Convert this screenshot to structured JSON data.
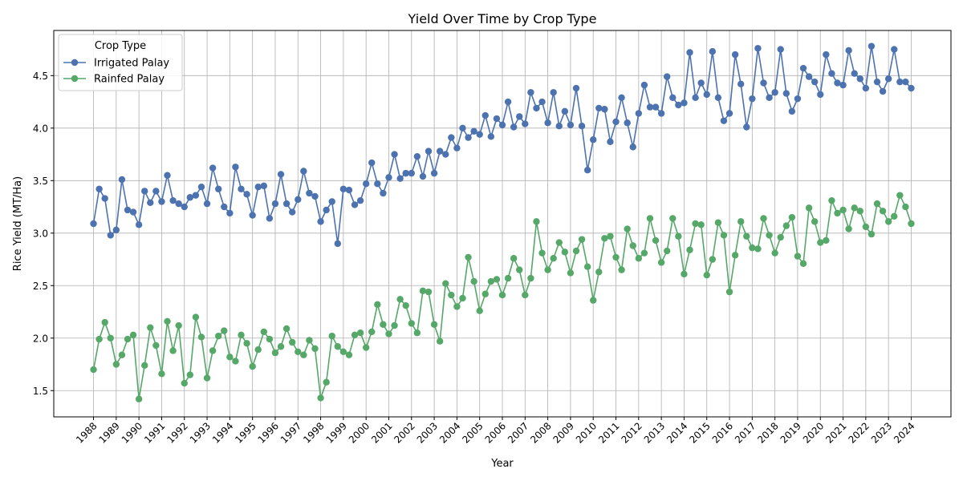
{
  "chart_data": {
    "type": "line",
    "title": "Yield Over Time by Crop Type",
    "xlabel": "Year",
    "ylabel": "Rice Yield (MT/Ha)",
    "xlim": [
      1986.25,
      2025.75
    ],
    "ylim": [
      1.25,
      4.93
    ],
    "yticks": [
      1.5,
      2.0,
      2.5,
      3.0,
      3.5,
      4.0,
      4.5
    ],
    "ytick_labels": [
      "1.5",
      "2.0",
      "2.5",
      "3.0",
      "3.5",
      "4.0",
      "4.5"
    ],
    "xticks": [
      1988,
      1989,
      1990,
      1991,
      1992,
      1993,
      1994,
      1995,
      1996,
      1997,
      1998,
      1999,
      2000,
      2001,
      2002,
      2003,
      2004,
      2005,
      2006,
      2007,
      2008,
      2009,
      2010,
      2011,
      2012,
      2013,
      2014,
      2015,
      2016,
      2017,
      2018,
      2019,
      2020,
      2021,
      2022,
      2023,
      2024
    ],
    "xtick_labels": [
      "1988",
      "1989",
      "1990",
      "1991",
      "1992",
      "1993",
      "1994",
      "1995",
      "1996",
      "1997",
      "1998",
      "1999",
      "2000",
      "2001",
      "2002",
      "2003",
      "2004",
      "2005",
      "2006",
      "2007",
      "2008",
      "2009",
      "2010",
      "2011",
      "2012",
      "2013",
      "2014",
      "2015",
      "2016",
      "2017",
      "2018",
      "2019",
      "2020",
      "2021",
      "2022",
      "2023",
      "2024"
    ],
    "grid": true,
    "legend_title": "Crop Type",
    "legend_position": "top-left",
    "x_start": 1988,
    "x_step": 0.25,
    "series": [
      {
        "name": "Irrigated Palay",
        "color": "#4c72b0",
        "values": [
          3.09,
          3.42,
          3.33,
          2.98,
          3.03,
          3.51,
          3.22,
          3.2,
          3.08,
          3.4,
          3.29,
          3.4,
          3.3,
          3.55,
          3.31,
          3.28,
          3.25,
          3.34,
          3.36,
          3.44,
          3.28,
          3.62,
          3.42,
          3.25,
          3.19,
          3.63,
          3.42,
          3.37,
          3.17,
          3.44,
          3.45,
          3.14,
          3.28,
          3.56,
          3.28,
          3.2,
          3.32,
          3.59,
          3.38,
          3.35,
          3.11,
          3.22,
          3.3,
          2.9,
          3.42,
          3.41,
          3.27,
          3.31,
          3.47,
          3.67,
          3.47,
          3.38,
          3.53,
          3.75,
          3.52,
          3.57,
          3.57,
          3.73,
          3.54,
          3.78,
          3.57,
          3.78,
          3.75,
          3.91,
          3.81,
          4.0,
          3.91,
          3.97,
          3.94,
          4.12,
          3.92,
          4.09,
          4.03,
          4.25,
          4.01,
          4.11,
          4.04,
          4.34,
          4.19,
          4.25,
          4.05,
          4.34,
          4.02,
          4.16,
          4.03,
          4.38,
          4.02,
          3.6,
          3.89,
          4.19,
          4.18,
          3.87,
          4.06,
          4.29,
          4.05,
          3.82,
          4.14,
          4.41,
          4.2,
          4.2,
          4.14,
          4.49,
          4.29,
          4.22,
          4.24,
          4.72,
          4.29,
          4.43,
          4.32,
          4.73,
          4.29,
          4.07,
          4.14,
          4.7,
          4.42,
          4.01,
          4.28,
          4.76,
          4.43,
          4.29,
          4.34,
          4.75,
          4.33,
          4.16,
          4.28,
          4.57,
          4.49,
          4.44,
          4.32,
          4.7,
          4.52,
          4.43,
          4.41,
          4.74,
          4.52,
          4.47,
          4.38,
          4.78,
          4.44,
          4.35,
          4.47,
          4.75,
          4.44,
          4.44,
          4.38
        ]
      },
      {
        "name": "Rainfed Palay",
        "color": "#55a868",
        "values": [
          1.7,
          1.99,
          2.15,
          2.0,
          1.75,
          1.84,
          1.99,
          2.03,
          1.42,
          1.74,
          2.1,
          1.93,
          1.66,
          2.16,
          1.88,
          2.12,
          1.57,
          1.65,
          2.2,
          2.01,
          1.62,
          1.88,
          2.02,
          2.07,
          1.82,
          1.78,
          2.03,
          1.95,
          1.73,
          1.89,
          2.06,
          1.99,
          1.86,
          1.92,
          2.09,
          1.96,
          1.87,
          1.84,
          1.98,
          1.9,
          1.43,
          1.58,
          2.02,
          1.92,
          1.87,
          1.84,
          2.03,
          2.05,
          1.91,
          2.06,
          2.32,
          2.13,
          2.04,
          2.12,
          2.37,
          2.31,
          2.14,
          2.05,
          2.45,
          2.44,
          2.13,
          1.97,
          2.52,
          2.41,
          2.3,
          2.38,
          2.77,
          2.54,
          2.26,
          2.42,
          2.54,
          2.56,
          2.41,
          2.57,
          2.76,
          2.65,
          2.41,
          2.57,
          3.11,
          2.81,
          2.65,
          2.76,
          2.91,
          2.82,
          2.62,
          2.83,
          2.94,
          2.68,
          2.36,
          2.63,
          2.95,
          2.97,
          2.77,
          2.65,
          3.04,
          2.88,
          2.76,
          2.81,
          3.14,
          2.93,
          2.72,
          2.83,
          3.14,
          2.97,
          2.61,
          2.84,
          3.09,
          3.08,
          2.6,
          2.75,
          3.1,
          2.98,
          2.44,
          2.79,
          3.11,
          2.97,
          2.86,
          2.85,
          3.14,
          2.98,
          2.81,
          2.96,
          3.07,
          3.15,
          2.78,
          2.71,
          3.24,
          3.11,
          2.91,
          2.93,
          3.31,
          3.19,
          3.22,
          3.04,
          3.24,
          3.21,
          3.06,
          2.99,
          3.28,
          3.21,
          3.11,
          3.16,
          3.36,
          3.25,
          3.09
        ]
      }
    ]
  }
}
